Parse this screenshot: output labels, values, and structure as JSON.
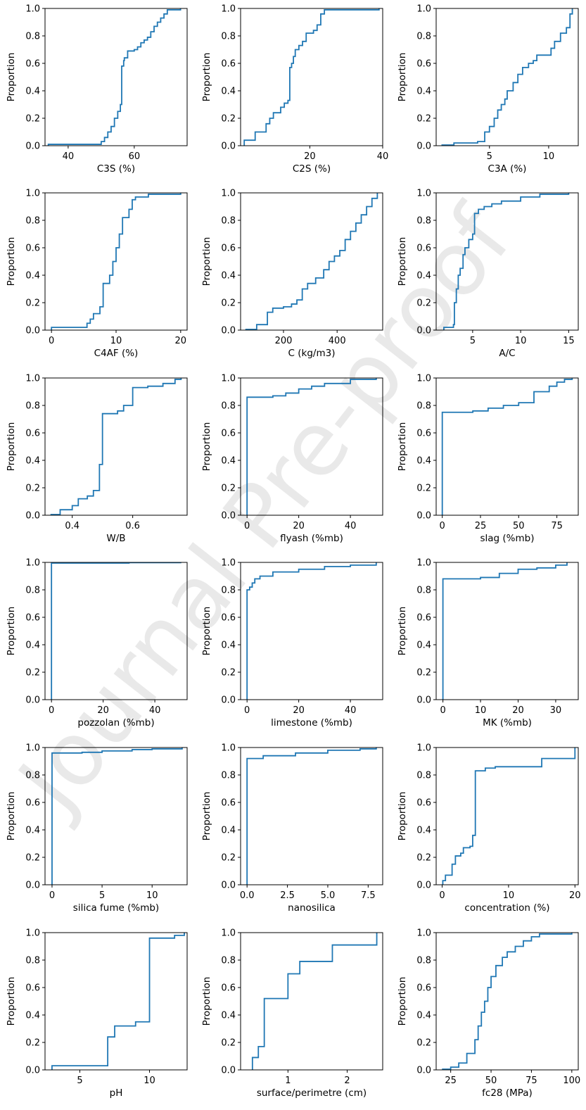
{
  "watermark": "Journal Pre-proof",
  "line_color": "#1f77b4",
  "chart_data": [
    {
      "type": "line",
      "ylabel": "Proportion",
      "xlabel": "C3S (%)",
      "xlim": [
        33,
        76
      ],
      "ylim": [
        0,
        1
      ],
      "xticks": [
        40,
        60
      ],
      "yticks": [
        0,
        0.2,
        0.4,
        0.6,
        0.8,
        1.0
      ],
      "points": [
        [
          34,
          0.01
        ],
        [
          48,
          0.01
        ],
        [
          50,
          0.03
        ],
        [
          51,
          0.06
        ],
        [
          52,
          0.1
        ],
        [
          53,
          0.14
        ],
        [
          54,
          0.2
        ],
        [
          55,
          0.25
        ],
        [
          55.8,
          0.3
        ],
        [
          56.2,
          0.58
        ],
        [
          56.8,
          0.62
        ],
        [
          57,
          0.64
        ],
        [
          58,
          0.69
        ],
        [
          60,
          0.7
        ],
        [
          61,
          0.72
        ],
        [
          62,
          0.75
        ],
        [
          63,
          0.77
        ],
        [
          64,
          0.79
        ],
        [
          65,
          0.83
        ],
        [
          66,
          0.87
        ],
        [
          67,
          0.9
        ],
        [
          68,
          0.93
        ],
        [
          69,
          0.96
        ],
        [
          70,
          0.99
        ],
        [
          74,
          1.0
        ]
      ]
    },
    {
      "type": "line",
      "ylabel": "Proportion",
      "xlabel": "C2S (%)",
      "xlim": [
        1,
        40
      ],
      "ylim": [
        0,
        1
      ],
      "xticks": [
        20,
        40
      ],
      "yticks": [
        0,
        0.2,
        0.4,
        0.6,
        0.8,
        1.0
      ],
      "points": [
        [
          2,
          0.04
        ],
        [
          5,
          0.1
        ],
        [
          8,
          0.16
        ],
        [
          9,
          0.2
        ],
        [
          10,
          0.24
        ],
        [
          12,
          0.28
        ],
        [
          13,
          0.31
        ],
        [
          14,
          0.33
        ],
        [
          14.5,
          0.57
        ],
        [
          15,
          0.6
        ],
        [
          15.5,
          0.65
        ],
        [
          16,
          0.7
        ],
        [
          17,
          0.73
        ],
        [
          18,
          0.76
        ],
        [
          19,
          0.82
        ],
        [
          21,
          0.84
        ],
        [
          22,
          0.88
        ],
        [
          23,
          0.96
        ],
        [
          24,
          0.99
        ],
        [
          39,
          1.0
        ]
      ]
    },
    {
      "type": "line",
      "ylabel": "Proportion",
      "xlabel": "C3A (%)",
      "xlim": [
        0.5,
        12.5
      ],
      "ylim": [
        0,
        1
      ],
      "xticks": [
        5,
        10
      ],
      "yticks": [
        0,
        0.2,
        0.4,
        0.6,
        0.8,
        1.0
      ],
      "points": [
        [
          1,
          0.005
        ],
        [
          2,
          0.02
        ],
        [
          4,
          0.03
        ],
        [
          4.6,
          0.1
        ],
        [
          5,
          0.14
        ],
        [
          5.4,
          0.2
        ],
        [
          5.7,
          0.26
        ],
        [
          6,
          0.3
        ],
        [
          6.3,
          0.34
        ],
        [
          6.5,
          0.4
        ],
        [
          7,
          0.46
        ],
        [
          7.4,
          0.52
        ],
        [
          7.8,
          0.57
        ],
        [
          8.3,
          0.6
        ],
        [
          8.7,
          0.62
        ],
        [
          9,
          0.66
        ],
        [
          10.2,
          0.71
        ],
        [
          10.5,
          0.76
        ],
        [
          11,
          0.82
        ],
        [
          11.5,
          0.86
        ],
        [
          11.8,
          0.96
        ],
        [
          12,
          1.0
        ]
      ]
    },
    {
      "type": "line",
      "ylabel": "Proportion",
      "xlabel": "C4AF (%)",
      "xlim": [
        -1,
        21
      ],
      "ylim": [
        0,
        1
      ],
      "xticks": [
        0,
        10,
        20
      ],
      "yticks": [
        0,
        0.2,
        0.4,
        0.6,
        0.8,
        1.0
      ],
      "points": [
        [
          0,
          0.02
        ],
        [
          5.5,
          0.05
        ],
        [
          6,
          0.08
        ],
        [
          6.5,
          0.12
        ],
        [
          7.5,
          0.17
        ],
        [
          8,
          0.34
        ],
        [
          9,
          0.4
        ],
        [
          9.5,
          0.5
        ],
        [
          10,
          0.6
        ],
        [
          10.5,
          0.7
        ],
        [
          11,
          0.82
        ],
        [
          12,
          0.88
        ],
        [
          12.5,
          0.95
        ],
        [
          13,
          0.97
        ],
        [
          15,
          0.99
        ],
        [
          20,
          1.0
        ]
      ]
    },
    {
      "type": "line",
      "ylabel": "Proportion",
      "xlabel": "C (kg/m3)",
      "xlim": [
        40,
        570
      ],
      "ylim": [
        0,
        1
      ],
      "xticks": [
        200,
        400
      ],
      "yticks": [
        0,
        0.2,
        0.4,
        0.6,
        0.8,
        1.0
      ],
      "points": [
        [
          60,
          0.005
        ],
        [
          100,
          0.04
        ],
        [
          140,
          0.13
        ],
        [
          160,
          0.16
        ],
        [
          200,
          0.17
        ],
        [
          230,
          0.19
        ],
        [
          250,
          0.22
        ],
        [
          270,
          0.3
        ],
        [
          290,
          0.34
        ],
        [
          320,
          0.38
        ],
        [
          350,
          0.44
        ],
        [
          370,
          0.5
        ],
        [
          390,
          0.54
        ],
        [
          410,
          0.58
        ],
        [
          430,
          0.66
        ],
        [
          450,
          0.72
        ],
        [
          470,
          0.78
        ],
        [
          490,
          0.84
        ],
        [
          510,
          0.9
        ],
        [
          530,
          0.96
        ],
        [
          550,
          1.0
        ]
      ]
    },
    {
      "type": "line",
      "ylabel": "Proportion",
      "xlabel": "A/C",
      "xlim": [
        1.2,
        16
      ],
      "ylim": [
        0,
        1
      ],
      "xticks": [
        5,
        10,
        15
      ],
      "yticks": [
        0,
        0.2,
        0.4,
        0.6,
        0.8,
        1.0
      ],
      "points": [
        [
          2,
          0.02
        ],
        [
          3,
          0.04
        ],
        [
          3.1,
          0.2
        ],
        [
          3.3,
          0.3
        ],
        [
          3.5,
          0.4
        ],
        [
          3.7,
          0.45
        ],
        [
          4,
          0.55
        ],
        [
          4.2,
          0.6
        ],
        [
          4.6,
          0.66
        ],
        [
          5,
          0.7
        ],
        [
          5.2,
          0.85
        ],
        [
          5.6,
          0.88
        ],
        [
          6.2,
          0.9
        ],
        [
          7,
          0.92
        ],
        [
          8,
          0.94
        ],
        [
          10,
          0.97
        ],
        [
          12,
          0.99
        ],
        [
          15,
          1.0
        ]
      ]
    },
    {
      "type": "line",
      "ylabel": "Proportion",
      "xlabel": "W/B",
      "xlim": [
        0.31,
        0.78
      ],
      "ylim": [
        0,
        1
      ],
      "xticks": [
        0.4,
        0.6
      ],
      "yticks": [
        0,
        0.2,
        0.4,
        0.6,
        0.8,
        1.0
      ],
      "points": [
        [
          0.33,
          0.005
        ],
        [
          0.36,
          0.04
        ],
        [
          0.4,
          0.07
        ],
        [
          0.42,
          0.12
        ],
        [
          0.45,
          0.14
        ],
        [
          0.47,
          0.18
        ],
        [
          0.49,
          0.37
        ],
        [
          0.5,
          0.74
        ],
        [
          0.55,
          0.76
        ],
        [
          0.57,
          0.8
        ],
        [
          0.6,
          0.93
        ],
        [
          0.65,
          0.94
        ],
        [
          0.7,
          0.96
        ],
        [
          0.74,
          0.99
        ],
        [
          0.76,
          1.0
        ]
      ]
    },
    {
      "type": "line",
      "ylabel": "Proportion",
      "xlabel": "flyash (%mb)",
      "xlim": [
        -2.5,
        52.5
      ],
      "ylim": [
        0,
        1
      ],
      "xticks": [
        0,
        20,
        40
      ],
      "yticks": [
        0,
        0.2,
        0.4,
        0.6,
        0.8,
        1.0
      ],
      "points": [
        [
          0,
          0.86
        ],
        [
          10,
          0.87
        ],
        [
          15,
          0.89
        ],
        [
          20,
          0.92
        ],
        [
          25,
          0.94
        ],
        [
          30,
          0.96
        ],
        [
          40,
          0.99
        ],
        [
          50,
          1.0
        ]
      ]
    },
    {
      "type": "line",
      "ylabel": "Proportion",
      "xlabel": "slag (%mb)",
      "xlim": [
        -4,
        89
      ],
      "ylim": [
        0,
        1
      ],
      "xticks": [
        0,
        25,
        50,
        75
      ],
      "yticks": [
        0,
        0.2,
        0.4,
        0.6,
        0.8,
        1.0
      ],
      "points": [
        [
          0,
          0.75
        ],
        [
          20,
          0.76
        ],
        [
          30,
          0.78
        ],
        [
          40,
          0.8
        ],
        [
          50,
          0.82
        ],
        [
          60,
          0.9
        ],
        [
          70,
          0.94
        ],
        [
          75,
          0.97
        ],
        [
          80,
          0.99
        ],
        [
          85,
          1.0
        ]
      ]
    },
    {
      "type": "line",
      "ylabel": "Proportion",
      "xlabel": "pozzolan (%mb)",
      "xlim": [
        -2.5,
        52.5
      ],
      "ylim": [
        0,
        1
      ],
      "xticks": [
        0,
        20,
        40
      ],
      "yticks": [
        0,
        0.2,
        0.4,
        0.6,
        0.8,
        1.0
      ],
      "points": [
        [
          0,
          0.995
        ],
        [
          30,
          0.998
        ],
        [
          50,
          1.0
        ]
      ]
    },
    {
      "type": "line",
      "ylabel": "Proportion",
      "xlabel": "limestone (%mb)",
      "xlim": [
        -2.5,
        52.5
      ],
      "ylim": [
        0,
        1
      ],
      "xticks": [
        0,
        20,
        40
      ],
      "yticks": [
        0,
        0.2,
        0.4,
        0.6,
        0.8,
        1.0
      ],
      "points": [
        [
          0,
          0.8
        ],
        [
          1,
          0.82
        ],
        [
          2,
          0.85
        ],
        [
          3,
          0.88
        ],
        [
          5,
          0.9
        ],
        [
          10,
          0.93
        ],
        [
          20,
          0.95
        ],
        [
          30,
          0.97
        ],
        [
          40,
          0.98
        ],
        [
          50,
          1.0
        ]
      ]
    },
    {
      "type": "line",
      "ylabel": "Proportion",
      "xlabel": "MK (%mb)",
      "xlim": [
        -1.8,
        36
      ],
      "ylim": [
        0,
        1
      ],
      "xticks": [
        0,
        10,
        20,
        30
      ],
      "yticks": [
        0,
        0.2,
        0.4,
        0.6,
        0.8,
        1.0
      ],
      "points": [
        [
          0,
          0.88
        ],
        [
          10,
          0.89
        ],
        [
          15,
          0.92
        ],
        [
          20,
          0.95
        ],
        [
          25,
          0.96
        ],
        [
          30,
          0.98
        ],
        [
          33,
          1.0
        ]
      ]
    },
    {
      "type": "line",
      "ylabel": "Proportion",
      "xlabel": "silica fume (%mb)",
      "xlim": [
        -0.7,
        13.5
      ],
      "ylim": [
        0,
        1
      ],
      "xticks": [
        0,
        5,
        10
      ],
      "yticks": [
        0,
        0.2,
        0.4,
        0.6,
        0.8,
        1.0
      ],
      "points": [
        [
          0,
          0.96
        ],
        [
          3,
          0.965
        ],
        [
          5,
          0.975
        ],
        [
          8,
          0.985
        ],
        [
          10,
          0.99
        ],
        [
          13,
          1.0
        ]
      ]
    },
    {
      "type": "line",
      "ylabel": "Proportion",
      "xlabel": "nanosilica",
      "xlim": [
        -0.4,
        8.4
      ],
      "ylim": [
        0,
        1
      ],
      "xticks": [
        0.0,
        2.5,
        5.0,
        7.5
      ],
      "yticks": [
        0,
        0.2,
        0.4,
        0.6,
        0.8,
        1.0
      ],
      "points": [
        [
          0,
          0.92
        ],
        [
          1,
          0.94
        ],
        [
          3,
          0.96
        ],
        [
          5,
          0.98
        ],
        [
          7,
          0.99
        ],
        [
          8,
          1.0
        ]
      ]
    },
    {
      "type": "line",
      "ylabel": "Proportion",
      "xlabel": "concentration (%)",
      "xlim": [
        -0.9,
        20.5
      ],
      "ylim": [
        0,
        1
      ],
      "xticks": [
        0,
        10,
        20
      ],
      "yticks": [
        0,
        0.2,
        0.4,
        0.6,
        0.8,
        1.0
      ],
      "points": [
        [
          0.1,
          0.03
        ],
        [
          0.5,
          0.07
        ],
        [
          1.5,
          0.15
        ],
        [
          2,
          0.21
        ],
        [
          2.8,
          0.23
        ],
        [
          3.2,
          0.27
        ],
        [
          4.2,
          0.28
        ],
        [
          4.6,
          0.36
        ],
        [
          5,
          0.83
        ],
        [
          6.5,
          0.85
        ],
        [
          8,
          0.86
        ],
        [
          15,
          0.92
        ],
        [
          20,
          1.0
        ]
      ]
    },
    {
      "type": "line",
      "ylabel": "Proportion",
      "xlabel": "pH",
      "xlim": [
        2.5,
        12.7
      ],
      "ylim": [
        0,
        1
      ],
      "xticks": [
        5,
        10
      ],
      "yticks": [
        0,
        0.2,
        0.4,
        0.6,
        0.8,
        1.0
      ],
      "points": [
        [
          3,
          0.03
        ],
        [
          7,
          0.24
        ],
        [
          7.5,
          0.32
        ],
        [
          9,
          0.35
        ],
        [
          10,
          0.96
        ],
        [
          11.8,
          0.98
        ],
        [
          12.5,
          1.0
        ]
      ]
    },
    {
      "type": "line",
      "ylabel": "Proportion",
      "xlabel": "surface/perimetre (cm)",
      "xlim": [
        0.2,
        2.6
      ],
      "ylim": [
        0,
        1
      ],
      "xticks": [
        1,
        2
      ],
      "yticks": [
        0,
        0.2,
        0.4,
        0.6,
        0.8,
        1.0
      ],
      "points": [
        [
          0.4,
          0.09
        ],
        [
          0.5,
          0.17
        ],
        [
          0.6,
          0.52
        ],
        [
          1.0,
          0.7
        ],
        [
          1.2,
          0.79
        ],
        [
          1.75,
          0.91
        ],
        [
          2.5,
          1.0
        ]
      ]
    },
    {
      "type": "line",
      "ylabel": "Proportion",
      "xlabel": "fc28 (MPa)",
      "xlim": [
        16,
        104
      ],
      "ylim": [
        0,
        1
      ],
      "xticks": [
        25,
        50,
        75,
        100
      ],
      "yticks": [
        0,
        0.2,
        0.4,
        0.6,
        0.8,
        1.0
      ],
      "points": [
        [
          20,
          0.005
        ],
        [
          25,
          0.02
        ],
        [
          30,
          0.05
        ],
        [
          35,
          0.12
        ],
        [
          40,
          0.22
        ],
        [
          42,
          0.32
        ],
        [
          44,
          0.42
        ],
        [
          46,
          0.5
        ],
        [
          48,
          0.6
        ],
        [
          50,
          0.68
        ],
        [
          53,
          0.76
        ],
        [
          57,
          0.82
        ],
        [
          60,
          0.86
        ],
        [
          65,
          0.9
        ],
        [
          70,
          0.94
        ],
        [
          75,
          0.97
        ],
        [
          80,
          0.99
        ],
        [
          100,
          1.0
        ]
      ]
    }
  ]
}
